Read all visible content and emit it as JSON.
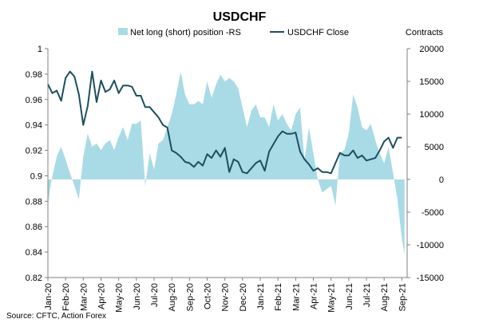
{
  "chart_data": {
    "type": "combo-area-line",
    "title": "USDCHF",
    "legend": {
      "placement": "top",
      "entries": [
        "Net long (short) position -RS",
        "USDCHF Close"
      ]
    },
    "right_axis_unit": "Contracts",
    "source": "Source: CFTC, Action Forex",
    "categories": [
      "Jan-20",
      "Feb-20",
      "Mar-20",
      "Apr-20",
      "May-20",
      "Jun-20",
      "Jul-20",
      "Aug-20",
      "Sep-20",
      "Oct-20",
      "Nov-20",
      "Dec-20",
      "Jan-21",
      "Feb-21",
      "Mar-21",
      "Apr-21",
      "May-21",
      "Jun-21",
      "Jul-21",
      "Aug-21",
      "Sep-21"
    ],
    "y_left": {
      "min": 0.82,
      "max": 1.0,
      "step": 0.02,
      "ticks": [
        "0.82",
        "0.84",
        "0.86",
        "0.88",
        "0.9",
        "0.92",
        "0.94",
        "0.96",
        "0.98",
        "1"
      ]
    },
    "y_right": {
      "min": -15000,
      "max": 20000,
      "step": 5000,
      "ticks": [
        "-15000",
        "-10000",
        "-5000",
        "0",
        "5000",
        "10000",
        "15000",
        "20000"
      ]
    },
    "x_range": [
      0,
      20.3
    ],
    "gridlines": false,
    "series": [
      {
        "name": "Net long (short) position -RS",
        "axis": "right",
        "kind": "area",
        "color": "#a9dbe6",
        "x": [
          0,
          0.12,
          0.25,
          0.5,
          0.75,
          1.0,
          1.25,
          1.5,
          1.75,
          2.0,
          2.25,
          2.5,
          2.75,
          3.0,
          3.25,
          3.5,
          3.75,
          4.0,
          4.25,
          4.5,
          4.75,
          5.0,
          5.25,
          5.5,
          5.75,
          6.0,
          6.25,
          6.5,
          6.75,
          7.0,
          7.25,
          7.5,
          7.75,
          8.0,
          8.25,
          8.5,
          8.75,
          9.0,
          9.25,
          9.5,
          9.75,
          10.0,
          10.25,
          10.5,
          10.75,
          11.0,
          11.25,
          11.5,
          11.75,
          12.0,
          12.25,
          12.5,
          12.75,
          13.0,
          13.25,
          13.5,
          13.75,
          14.0,
          14.25,
          14.5,
          14.75,
          15.0,
          15.25,
          15.5,
          15.75,
          16.0,
          16.25,
          16.5,
          16.75,
          17.0,
          17.25,
          17.5,
          17.75,
          18.0,
          18.25,
          18.5,
          18.75,
          19.0,
          19.25,
          19.5,
          19.75,
          20.0,
          20.15
        ],
        "values": [
          -4000,
          -1500,
          500,
          3500,
          5000,
          3000,
          1000,
          -1000,
          -3000,
          3500,
          7000,
          5000,
          5500,
          4500,
          5500,
          6000,
          4500,
          6500,
          8000,
          6000,
          8500,
          8500,
          9000,
          -1000,
          4000,
          1500,
          5500,
          6000,
          8000,
          10000,
          13000,
          16500,
          13000,
          11500,
          11500,
          12000,
          11500,
          15000,
          12500,
          14500,
          16000,
          15000,
          15500,
          15000,
          14000,
          11000,
          8000,
          10500,
          11500,
          9500,
          9500,
          8000,
          11500,
          9000,
          10000,
          8500,
          7500,
          10000,
          11000,
          3000,
          8000,
          4000,
          0,
          -2000,
          -1500,
          -1000,
          -4000,
          4000,
          4500,
          7000,
          13000,
          11000,
          8000,
          7500,
          8500,
          6000,
          4000,
          2500,
          5000,
          1000,
          -3000,
          -9000,
          -11500
        ]
      },
      {
        "name": "USDCHF Close",
        "axis": "left",
        "kind": "line",
        "color": "#1c4f5e",
        "x": [
          0,
          0.25,
          0.5,
          0.75,
          1.0,
          1.25,
          1.5,
          1.75,
          2.0,
          2.25,
          2.5,
          2.75,
          3.0,
          3.25,
          3.5,
          3.75,
          4.0,
          4.25,
          4.5,
          4.75,
          5.0,
          5.25,
          5.5,
          5.75,
          6.0,
          6.25,
          6.5,
          6.75,
          7.0,
          7.25,
          7.5,
          7.75,
          8.0,
          8.25,
          8.5,
          8.75,
          9.0,
          9.25,
          9.5,
          9.75,
          10.0,
          10.25,
          10.5,
          10.75,
          11.0,
          11.25,
          11.5,
          11.75,
          12.0,
          12.25,
          12.5,
          12.75,
          13.0,
          13.25,
          13.5,
          13.75,
          14.0,
          14.25,
          14.5,
          14.75,
          15.0,
          15.25,
          15.5,
          15.75,
          16.0,
          16.25,
          16.5,
          16.75,
          17.0,
          17.25,
          17.5,
          17.75,
          18.0,
          18.25,
          18.5,
          18.75,
          19.0,
          19.25,
          19.5,
          19.75,
          20.0
        ],
        "values": [
          0.972,
          0.965,
          0.967,
          0.959,
          0.977,
          0.982,
          0.978,
          0.964,
          0.94,
          0.955,
          0.982,
          0.958,
          0.975,
          0.966,
          0.968,
          0.975,
          0.965,
          0.971,
          0.971,
          0.97,
          0.963,
          0.963,
          0.954,
          0.954,
          0.95,
          0.946,
          0.94,
          0.938,
          0.92,
          0.918,
          0.915,
          0.911,
          0.91,
          0.907,
          0.911,
          0.908,
          0.917,
          0.914,
          0.92,
          0.915,
          0.922,
          0.903,
          0.913,
          0.911,
          0.903,
          0.902,
          0.906,
          0.91,
          0.912,
          0.904,
          0.919,
          0.925,
          0.931,
          0.935,
          0.933,
          0.933,
          0.934,
          0.919,
          0.913,
          0.909,
          0.904,
          0.906,
          0.903,
          0.903,
          0.902,
          0.91,
          0.918,
          0.916,
          0.916,
          0.92,
          0.914,
          0.916,
          0.912,
          0.913,
          0.914,
          0.92,
          0.927,
          0.93,
          0.922,
          0.93,
          0.93
        ]
      }
    ]
  }
}
